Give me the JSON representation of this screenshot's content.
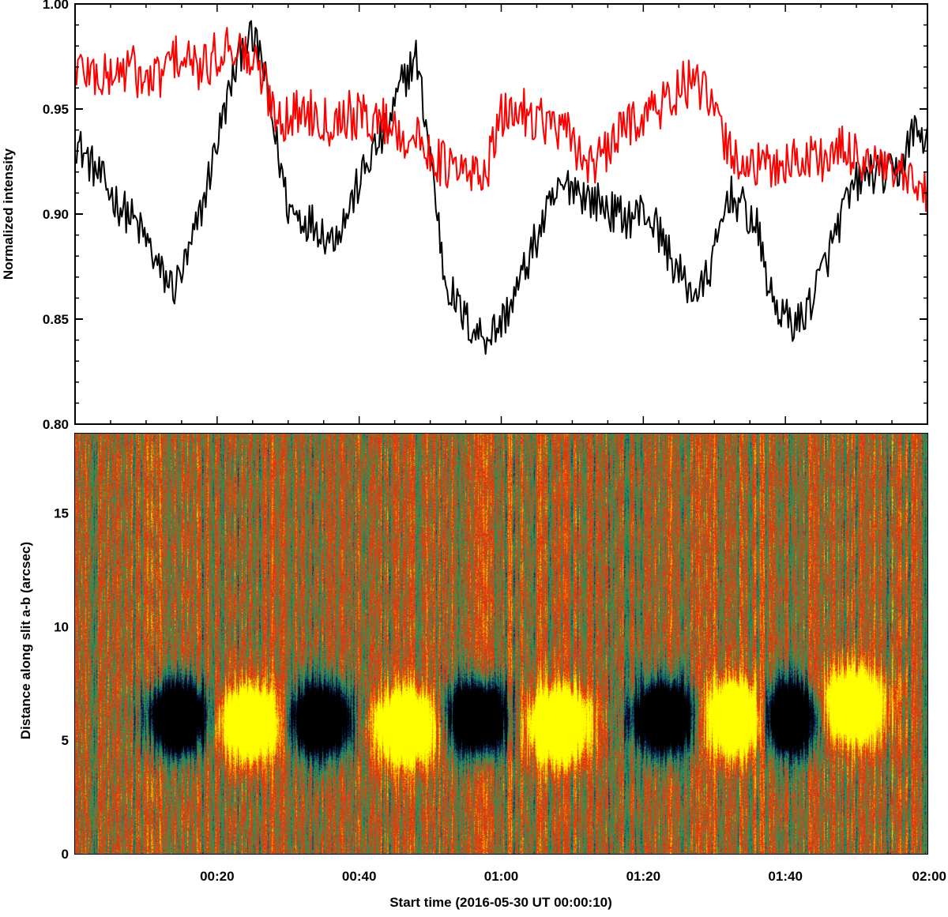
{
  "chart_data": [
    {
      "type": "line",
      "panel": "top",
      "ylabel": "Normalized intensity",
      "xlabel": "",
      "xlim": [
        0,
        120
      ],
      "ylim": [
        0.8,
        1.0
      ],
      "yticks": [
        "0.80",
        "0.85",
        "0.90",
        "0.95",
        "1.00"
      ],
      "ytick_values": [
        0.8,
        0.85,
        0.9,
        0.95,
        1.0
      ],
      "grid": false,
      "series": [
        {
          "name": "black",
          "color": "#000000",
          "x": [
            0,
            2,
            4,
            6,
            8,
            10,
            12,
            14,
            16,
            18,
            20,
            22,
            24,
            26,
            28,
            30,
            32,
            34,
            36,
            38,
            40,
            42,
            44,
            46,
            48,
            50,
            52,
            54,
            56,
            58,
            60,
            62,
            64,
            66,
            68,
            70,
            72,
            74,
            76,
            78,
            80,
            82,
            84,
            86,
            88,
            90,
            92,
            94,
            96,
            98,
            100,
            102,
            104,
            106,
            108,
            110,
            112,
            114,
            116,
            118,
            120
          ],
          "values": [
            0.935,
            0.925,
            0.915,
            0.905,
            0.898,
            0.888,
            0.872,
            0.865,
            0.88,
            0.905,
            0.935,
            0.962,
            0.985,
            0.978,
            0.94,
            0.903,
            0.898,
            0.895,
            0.888,
            0.898,
            0.915,
            0.93,
            0.94,
            0.962,
            0.975,
            0.93,
            0.87,
            0.855,
            0.845,
            0.842,
            0.848,
            0.862,
            0.88,
            0.897,
            0.91,
            0.915,
            0.908,
            0.905,
            0.9,
            0.898,
            0.902,
            0.893,
            0.878,
            0.866,
            0.862,
            0.88,
            0.91,
            0.903,
            0.893,
            0.86,
            0.85,
            0.848,
            0.862,
            0.88,
            0.9,
            0.915,
            0.92,
            0.918,
            0.92,
            0.94,
            0.935
          ]
        },
        {
          "name": "red",
          "color": "#ff0000",
          "x": [
            0,
            2,
            4,
            6,
            8,
            10,
            12,
            14,
            16,
            18,
            20,
            22,
            24,
            26,
            28,
            30,
            32,
            34,
            36,
            38,
            40,
            42,
            44,
            46,
            48,
            50,
            52,
            54,
            56,
            58,
            60,
            62,
            64,
            66,
            68,
            70,
            72,
            74,
            76,
            78,
            80,
            82,
            84,
            86,
            88,
            90,
            92,
            94,
            96,
            98,
            100,
            102,
            104,
            106,
            108,
            110,
            112,
            114,
            116,
            118,
            120
          ],
          "values": [
            0.97,
            0.968,
            0.964,
            0.968,
            0.97,
            0.962,
            0.966,
            0.975,
            0.972,
            0.968,
            0.976,
            0.982,
            0.975,
            0.968,
            0.95,
            0.945,
            0.95,
            0.948,
            0.944,
            0.948,
            0.946,
            0.945,
            0.944,
            0.938,
            0.935,
            0.93,
            0.923,
            0.92,
            0.918,
            0.922,
            0.945,
            0.95,
            0.948,
            0.945,
            0.94,
            0.935,
            0.925,
            0.925,
            0.935,
            0.944,
            0.948,
            0.95,
            0.956,
            0.962,
            0.96,
            0.948,
            0.93,
            0.925,
            0.922,
            0.922,
            0.925,
            0.925,
            0.928,
            0.926,
            0.93,
            0.928,
            0.925,
            0.92,
            0.918,
            0.912,
            0.91
          ]
        }
      ]
    },
    {
      "type": "heatmap",
      "panel": "bottom",
      "ylabel": "Distance along slit a-b (arcsec)",
      "xlabel": "Start time (2016-05-30 UT 00:00:10)",
      "xlim": [
        0,
        120
      ],
      "ylim": [
        0,
        18.5
      ],
      "yticks": [
        "0",
        "5",
        "10",
        "15"
      ],
      "ytick_values": [
        0,
        5,
        10,
        15
      ],
      "xticks": [
        "00:20",
        "00:40",
        "01:00",
        "01:20",
        "01:40",
        "02:00"
      ],
      "xtick_values": [
        20,
        40,
        60,
        80,
        100,
        120
      ],
      "colormap": [
        "#000000",
        "#0a1e5a",
        "#1e7a6e",
        "#2a9a4a",
        "#c85020",
        "#e82808",
        "#f0a000",
        "#ffff00"
      ],
      "blobs": [
        {
          "t": 14.5,
          "d": 6.0,
          "sign": "dark"
        },
        {
          "t": 24.5,
          "d": 5.8,
          "sign": "bright"
        },
        {
          "t": 34.5,
          "d": 5.9,
          "sign": "dark"
        },
        {
          "t": 46.5,
          "d": 5.6,
          "sign": "bright"
        },
        {
          "t": 56.5,
          "d": 6.0,
          "sign": "dark"
        },
        {
          "t": 68.0,
          "d": 5.7,
          "sign": "bright"
        },
        {
          "t": 83.0,
          "d": 6.0,
          "sign": "dark"
        },
        {
          "t": 93.0,
          "d": 6.0,
          "sign": "bright"
        },
        {
          "t": 100.5,
          "d": 6.0,
          "sign": "dark"
        },
        {
          "t": 109.5,
          "d": 6.5,
          "sign": "bright"
        }
      ]
    }
  ]
}
